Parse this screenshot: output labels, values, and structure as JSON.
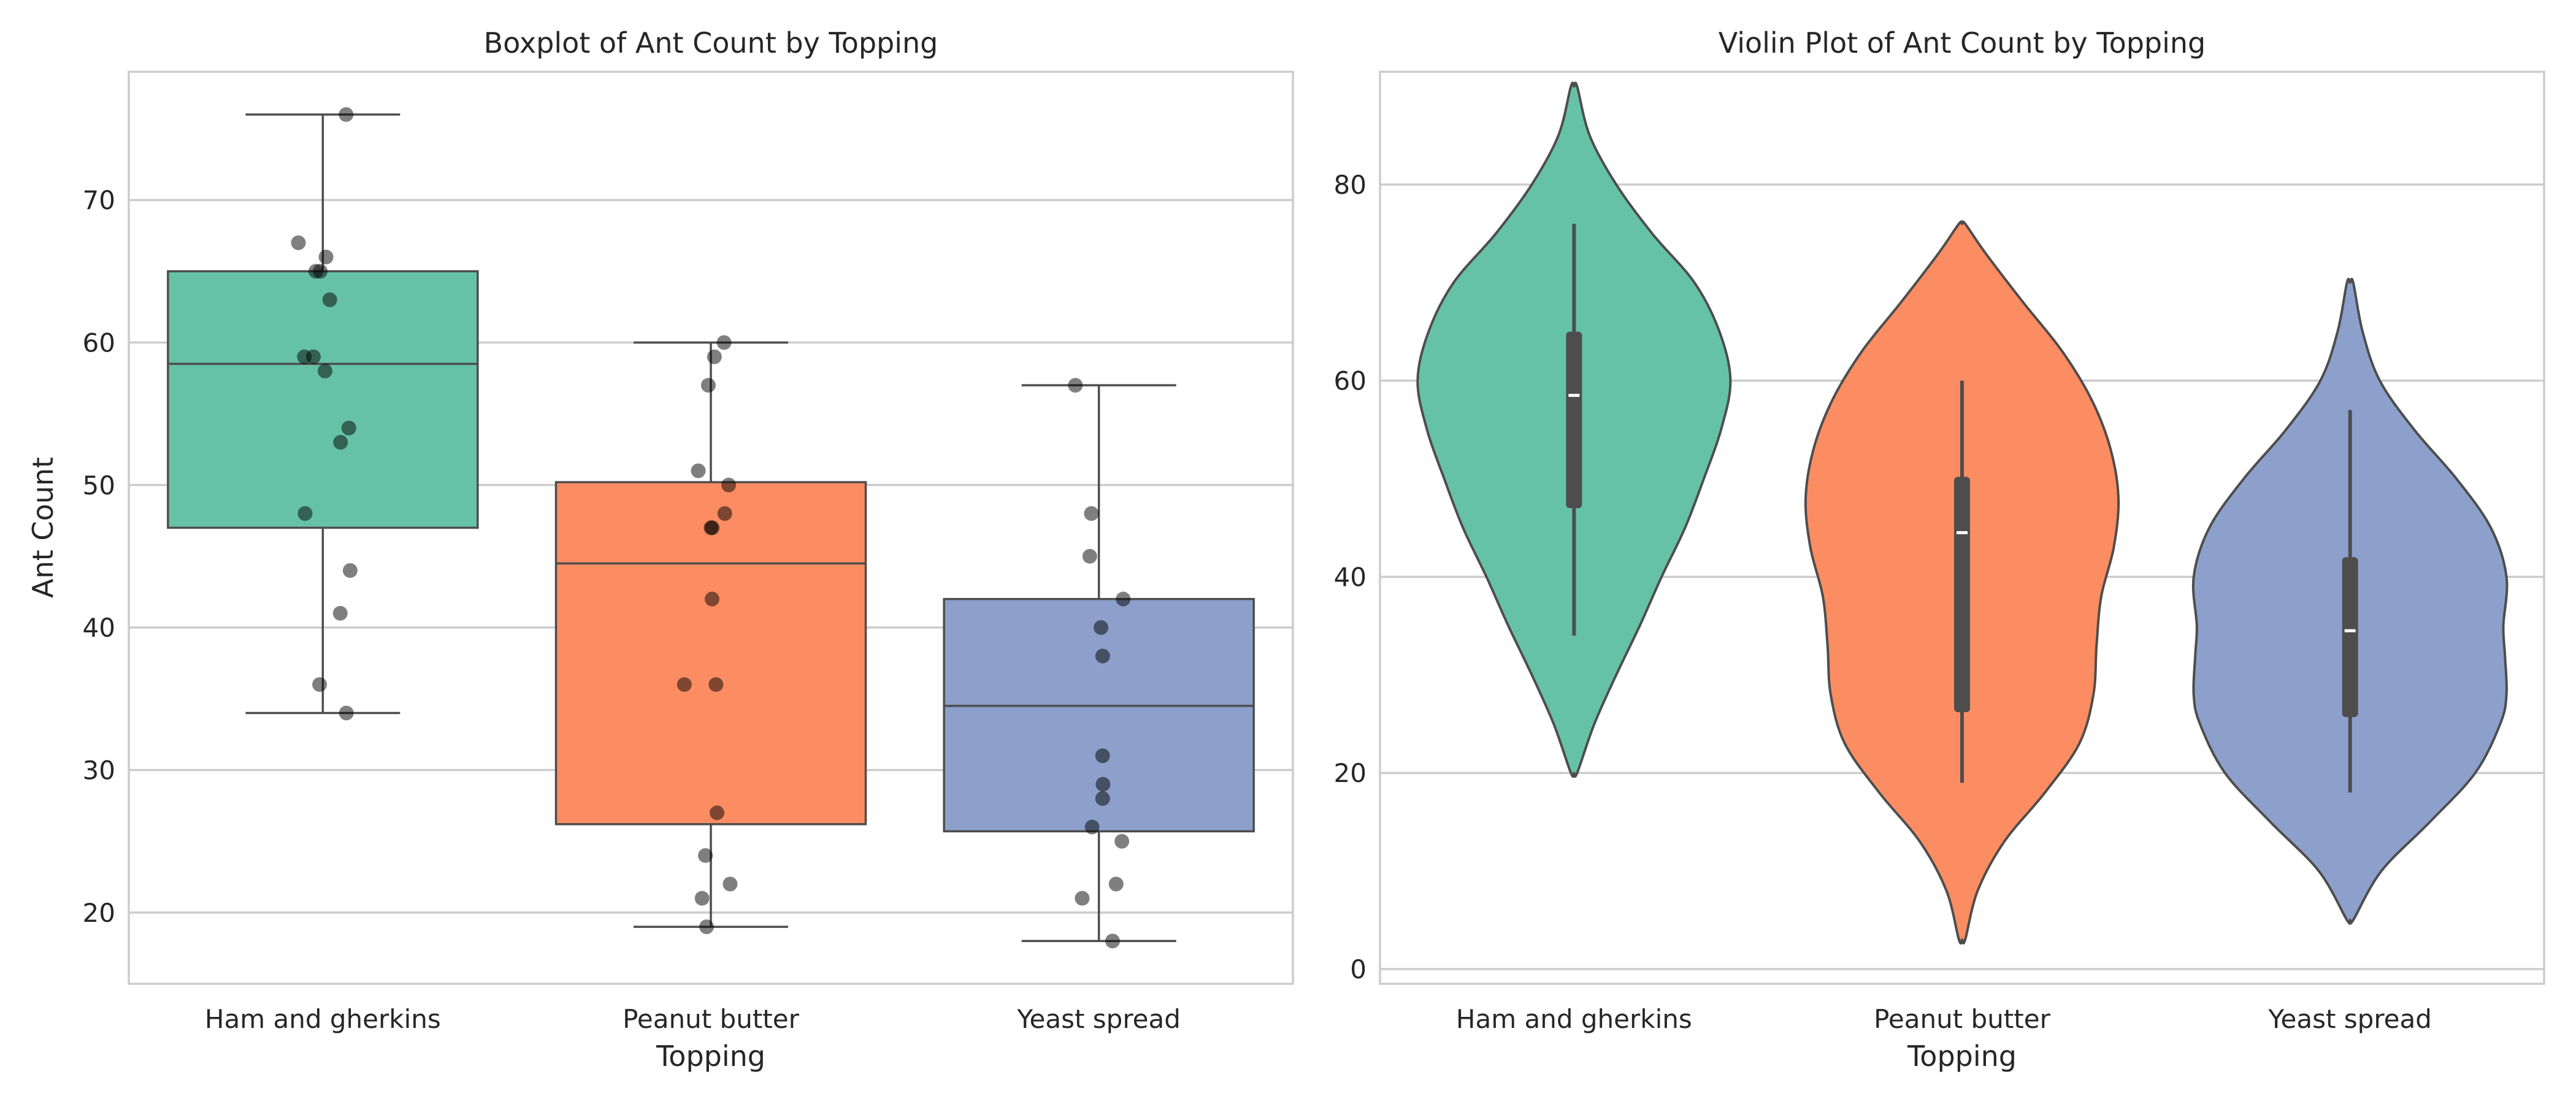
{
  "chart_data": [
    {
      "type": "box",
      "title": "Boxplot of Ant Count by Topping",
      "xlabel": "Topping",
      "ylabel": "Ant Count",
      "ylim": [
        15,
        79
      ],
      "yticks": [
        20,
        30,
        40,
        50,
        60,
        70
      ],
      "grid": true,
      "categories": [
        "Ham and gherkins",
        "Peanut butter",
        "Yeast spread"
      ],
      "colors": [
        "#66c2a5",
        "#fc8d62",
        "#8da0cb"
      ],
      "boxes": [
        {
          "category": "Ham and gherkins",
          "whislo": 34,
          "q1": 47,
          "median": 58.5,
          "q3": 65,
          "whishi": 76,
          "points": [
            76,
            67,
            66,
            65,
            65,
            63,
            59,
            59,
            58,
            54,
            53,
            48,
            44,
            41,
            36,
            34
          ]
        },
        {
          "category": "Peanut butter",
          "whislo": 19,
          "q1": 26.2,
          "median": 44.5,
          "q3": 50.2,
          "whishi": 60,
          "points": [
            60,
            59,
            57,
            51,
            50,
            48,
            47,
            47,
            42,
            36,
            36,
            27,
            24,
            22,
            21,
            19
          ]
        },
        {
          "category": "Yeast spread",
          "whislo": 18,
          "q1": 25.7,
          "median": 34.5,
          "q3": 42,
          "whishi": 57,
          "points": [
            57,
            48,
            45,
            42,
            40,
            38,
            31,
            29,
            28,
            26,
            25,
            22,
            21,
            18
          ]
        }
      ]
    },
    {
      "type": "violin",
      "title": "Violin Plot of Ant Count by Topping",
      "xlabel": "Topping",
      "ylabel": "",
      "ylim": [
        -1.5,
        91.5
      ],
      "yticks": [
        0,
        20,
        40,
        60,
        80
      ],
      "grid": true,
      "categories": [
        "Ham and gherkins",
        "Peanut butter",
        "Yeast spread"
      ],
      "colors": [
        "#66c2a5",
        "#fc8d62",
        "#8da0cb"
      ],
      "violins": [
        {
          "category": "Ham and gherkins",
          "min": 20,
          "max": 90,
          "whislo": 34,
          "q1": 47,
          "median": 58.5,
          "q3": 65,
          "whishi": 76,
          "profile": [
            [
              20,
              0.02
            ],
            [
              25,
              0.13
            ],
            [
              30,
              0.27
            ],
            [
              35,
              0.42
            ],
            [
              40,
              0.56
            ],
            [
              45,
              0.71
            ],
            [
              50,
              0.83
            ],
            [
              55,
              0.94
            ],
            [
              60,
              1.0
            ],
            [
              65,
              0.93
            ],
            [
              70,
              0.77
            ],
            [
              75,
              0.5
            ],
            [
              80,
              0.27
            ],
            [
              85,
              0.1
            ],
            [
              90,
              0.02
            ]
          ]
        },
        {
          "category": "Peanut butter",
          "min": 3,
          "max": 76,
          "whislo": 19,
          "q1": 26.2,
          "median": 44.5,
          "q3": 50.2,
          "whishi": 60,
          "profile": [
            [
              3,
              0.02
            ],
            [
              8,
              0.1
            ],
            [
              13,
              0.27
            ],
            [
              18,
              0.53
            ],
            [
              23,
              0.75
            ],
            [
              28,
              0.84
            ],
            [
              33,
              0.86
            ],
            [
              38,
              0.89
            ],
            [
              43,
              0.97
            ],
            [
              48,
              1.0
            ],
            [
              53,
              0.95
            ],
            [
              58,
              0.83
            ],
            [
              63,
              0.64
            ],
            [
              68,
              0.39
            ],
            [
              73,
              0.15
            ],
            [
              76,
              0.02
            ]
          ]
        },
        {
          "category": "Yeast spread",
          "min": 5,
          "max": 70,
          "whislo": 18,
          "q1": 25.7,
          "median": 34.5,
          "q3": 42,
          "whishi": 57,
          "profile": [
            [
              5,
              0.02
            ],
            [
              10,
              0.2
            ],
            [
              15,
              0.51
            ],
            [
              20,
              0.8
            ],
            [
              25,
              0.96
            ],
            [
              28,
              1.0
            ],
            [
              32,
              0.99
            ],
            [
              35,
              0.98
            ],
            [
              40,
              1.0
            ],
            [
              45,
              0.9
            ],
            [
              50,
              0.68
            ],
            [
              55,
              0.41
            ],
            [
              60,
              0.19
            ],
            [
              65,
              0.08
            ],
            [
              70,
              0.02
            ]
          ]
        }
      ]
    }
  ]
}
